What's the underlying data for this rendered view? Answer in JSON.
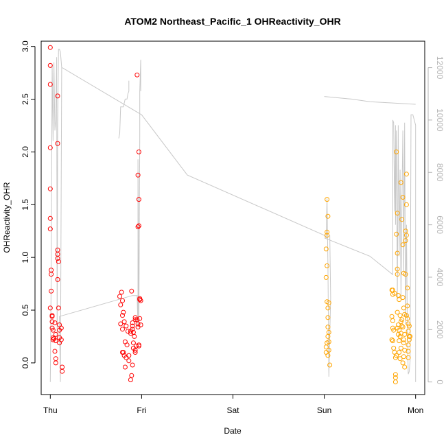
{
  "chart_data": {
    "type": "scatter",
    "title": "ATOM2 Northeast_Pacific_1 OHReactivity_OHR",
    "xlabel": "Date",
    "ylabel": "OHReactivity_OHR",
    "x_tick_labels": [
      "Thu",
      "Fri",
      "Sat",
      "Sun",
      "Mon"
    ],
    "x_tick_values": [
      0,
      1,
      2,
      3,
      4
    ],
    "xlim": [
      -0.1,
      4.1
    ],
    "ylim": [
      -0.3,
      3.05
    ],
    "y_ticks": [
      0.0,
      0.5,
      1.0,
      1.5,
      2.0,
      2.5,
      3.0
    ],
    "y_tick_labels": [
      "0.0",
      "0.5",
      "1.0",
      "1.5",
      "2.0",
      "2.5",
      "3.0"
    ],
    "y2_ticks": [
      0,
      2000,
      4000,
      6000,
      8000,
      10000,
      12000
    ],
    "y2_tick_labels": [
      "0",
      "2000",
      "4000",
      "6000",
      "8000",
      "10000",
      "12000"
    ],
    "y2lim": [
      -480,
      13010
    ],
    "grid": false,
    "colors": {
      "red_series": "#ff0000",
      "orange_series": "#ffa500",
      "altitude_line": "#c8c8c8"
    },
    "series": [
      {
        "marker": "open-circle",
        "color": "#ff0000",
        "points": [
          [
            0.0,
            2.99
          ],
          [
            0.0,
            2.82
          ],
          [
            0.0,
            2.64
          ],
          [
            0.0,
            2.04
          ],
          [
            0.0,
            1.65
          ],
          [
            0.0,
            1.37
          ],
          [
            0.0,
            1.27
          ],
          [
            0.01,
            0.88
          ],
          [
            0.01,
            0.84
          ],
          [
            0.01,
            0.68
          ],
          [
            0.0,
            0.52
          ],
          [
            0.02,
            0.45
          ],
          [
            0.02,
            0.44
          ],
          [
            0.02,
            0.39
          ],
          [
            0.02,
            0.33
          ],
          [
            0.03,
            0.31
          ],
          [
            0.03,
            0.24
          ],
          [
            0.03,
            0.22
          ],
          [
            0.05,
            0.38
          ],
          [
            0.06,
            0.27
          ],
          [
            0.04,
            0.23
          ],
          [
            0.06,
            0.21
          ],
          [
            0.05,
            0.11
          ],
          [
            0.06,
            0.04
          ],
          [
            0.06,
            0.0
          ],
          [
            0.08,
            2.53
          ],
          [
            0.08,
            2.08
          ],
          [
            0.08,
            1.07
          ],
          [
            0.08,
            1.03
          ],
          [
            0.08,
            0.99
          ],
          [
            0.09,
            0.96
          ],
          [
            0.08,
            0.79
          ],
          [
            0.09,
            0.52
          ],
          [
            0.1,
            0.36
          ],
          [
            0.1,
            0.31
          ],
          [
            0.1,
            0.24
          ],
          [
            0.1,
            0.19
          ],
          [
            0.12,
            0.33
          ],
          [
            0.12,
            0.22
          ],
          [
            0.13,
            -0.04
          ],
          [
            0.13,
            -0.08
          ],
          [
            0.76,
            0.63
          ],
          [
            0.78,
            0.67
          ],
          [
            0.79,
            0.59
          ],
          [
            0.77,
            0.55
          ],
          [
            0.79,
            0.45
          ],
          [
            0.8,
            0.48
          ],
          [
            0.77,
            0.37
          ],
          [
            0.81,
            0.39
          ],
          [
            0.79,
            0.32
          ],
          [
            0.83,
            0.35
          ],
          [
            0.85,
            0.3
          ],
          [
            0.82,
            0.2
          ],
          [
            0.84,
            0.17
          ],
          [
            0.79,
            0.1
          ],
          [
            0.8,
            0.1
          ],
          [
            0.81,
            0.07
          ],
          [
            0.83,
            0.05
          ],
          [
            0.82,
            -0.04
          ],
          [
            0.86,
            0.07
          ],
          [
            0.86,
            0.02
          ],
          [
            0.88,
            0.3
          ],
          [
            0.88,
            0.28
          ],
          [
            0.9,
            0.38
          ],
          [
            0.9,
            0.35
          ],
          [
            0.9,
            0.32
          ],
          [
            0.91,
            0.29
          ],
          [
            0.92,
            0.25
          ],
          [
            0.91,
            0.19
          ],
          [
            0.91,
            0.14
          ],
          [
            0.89,
            0.68
          ],
          [
            0.93,
            0.43
          ],
          [
            0.93,
            0.41
          ],
          [
            0.95,
            0.41
          ],
          [
            0.96,
            0.37
          ],
          [
            0.96,
            0.34
          ],
          [
            0.93,
            0.1
          ],
          [
            0.93,
            0.12
          ],
          [
            0.94,
            0.16
          ],
          [
            0.97,
            0.17
          ],
          [
            0.97,
            0.16
          ],
          [
            0.9,
            -0.02
          ],
          [
            0.89,
            -0.12
          ],
          [
            0.88,
            -0.16
          ],
          [
            0.95,
            2.73
          ],
          [
            0.97,
            2.0
          ],
          [
            0.96,
            1.78
          ],
          [
            0.97,
            1.55
          ],
          [
            0.96,
            1.29
          ],
          [
            0.97,
            1.3
          ],
          [
            0.98,
            0.61
          ],
          [
            0.98,
            0.6
          ],
          [
            0.99,
            0.59
          ],
          [
            0.98,
            0.42
          ],
          [
            0.99,
            0.36
          ]
        ]
      },
      {
        "marker": "open-circle",
        "color": "#ffa500",
        "points": [
          [
            3.03,
            1.55
          ],
          [
            3.04,
            1.39
          ],
          [
            3.03,
            1.24
          ],
          [
            3.03,
            1.21
          ],
          [
            3.02,
            1.08
          ],
          [
            3.03,
            0.92
          ],
          [
            3.02,
            0.81
          ],
          [
            3.03,
            0.58
          ],
          [
            3.05,
            0.57
          ],
          [
            3.04,
            0.52
          ],
          [
            3.04,
            0.43
          ],
          [
            3.04,
            0.34
          ],
          [
            3.05,
            0.29
          ],
          [
            3.04,
            0.25
          ],
          [
            3.05,
            0.2
          ],
          [
            3.03,
            0.19
          ],
          [
            3.02,
            0.15
          ],
          [
            3.05,
            0.12
          ],
          [
            3.02,
            0.1
          ],
          [
            3.04,
            0.07
          ],
          [
            3.06,
            -0.02
          ],
          [
            3.75,
            0.69
          ],
          [
            3.74,
            0.69
          ],
          [
            3.75,
            0.65
          ],
          [
            3.77,
            0.66
          ],
          [
            3.74,
            0.44
          ],
          [
            3.75,
            0.4
          ],
          [
            3.75,
            0.33
          ],
          [
            3.76,
            0.31
          ],
          [
            3.74,
            0.22
          ],
          [
            3.75,
            0.21
          ],
          [
            3.76,
            0.14
          ],
          [
            3.77,
            0.1
          ],
          [
            3.78,
            0.05
          ],
          [
            3.79,
            0.07
          ],
          [
            3.78,
            -0.11
          ],
          [
            3.78,
            -0.14
          ],
          [
            3.78,
            -0.18
          ],
          [
            3.79,
            2.0
          ],
          [
            3.8,
            1.42
          ],
          [
            3.79,
            1.22
          ],
          [
            3.8,
            1.04
          ],
          [
            3.8,
            0.89
          ],
          [
            3.8,
            0.84
          ],
          [
            3.81,
            0.64
          ],
          [
            3.82,
            0.6
          ],
          [
            3.8,
            0.48
          ],
          [
            3.83,
            0.45
          ],
          [
            3.81,
            0.36
          ],
          [
            3.82,
            0.31
          ],
          [
            3.83,
            0.25
          ],
          [
            3.82,
            0.21
          ],
          [
            3.84,
            0.14
          ],
          [
            3.82,
            0.1
          ],
          [
            3.83,
            0.04
          ],
          [
            3.84,
            1.71
          ],
          [
            3.86,
            1.57
          ],
          [
            3.85,
            1.36
          ],
          [
            3.86,
            1.12
          ],
          [
            3.87,
            0.85
          ],
          [
            3.86,
            0.62
          ],
          [
            3.87,
            0.52
          ],
          [
            3.85,
            0.41
          ],
          [
            3.86,
            0.34
          ],
          [
            3.88,
            0.27
          ],
          [
            3.87,
            0.22
          ],
          [
            3.87,
            0.19
          ],
          [
            3.88,
            0.12
          ],
          [
            3.87,
            0.06
          ],
          [
            3.86,
            0.0
          ],
          [
            3.9,
            1.79
          ],
          [
            3.9,
            1.5
          ],
          [
            3.89,
            1.25
          ],
          [
            3.9,
            1.21
          ],
          [
            3.89,
            1.16
          ],
          [
            3.89,
            0.84
          ],
          [
            3.91,
            0.71
          ],
          [
            3.91,
            0.54
          ],
          [
            3.91,
            0.42
          ],
          [
            3.92,
            0.37
          ],
          [
            3.93,
            0.35
          ],
          [
            3.93,
            0.25
          ],
          [
            3.94,
            0.25
          ],
          [
            3.92,
            0.17
          ],
          [
            3.92,
            0.11
          ],
          [
            3.88,
            -0.04
          ],
          [
            3.9,
            0.45
          ],
          [
            3.88,
            0.46
          ],
          [
            3.85,
            0.35
          ],
          [
            3.84,
            0.28
          ],
          [
            3.81,
            0.27
          ],
          [
            3.84,
            0.39
          ],
          [
            3.8,
            0.33
          ],
          [
            3.92,
            0.3
          ],
          [
            3.93,
            0.22
          ],
          [
            3.92,
            0.05
          ]
        ]
      }
    ],
    "secondary_line": {
      "axis": "right",
      "color": "#c8c8c8",
      "segments": [
        [
          [
            0.0,
            0
          ],
          [
            0.01,
            4100
          ],
          [
            0.02,
            12100
          ],
          [
            0.03,
            9200
          ],
          [
            0.04,
            12200
          ],
          [
            0.05,
            9600
          ],
          [
            0.06,
            10000
          ],
          [
            0.07,
            12400
          ],
          [
            0.075,
            1500
          ],
          [
            0.08,
            9600
          ],
          [
            0.09,
            12700
          ],
          [
            0.1,
            12700
          ],
          [
            0.11,
            12600
          ],
          [
            0.12,
            12200
          ],
          [
            0.125,
            12000
          ],
          [
            0.11,
            0
          ],
          [
            0.1,
            2500
          ],
          [
            0.9,
            3300
          ],
          [
            0.95,
            3300
          ],
          [
            0.96,
            2100
          ],
          [
            0.96,
            8500
          ],
          [
            0.97,
            2100
          ],
          [
            0.98,
            9400
          ],
          [
            0.98,
            11100
          ],
          [
            0.99,
            12300
          ],
          [
            0.99,
            11100
          ]
        ],
        [
          [
            0.75,
            9300
          ],
          [
            0.76,
            9500
          ],
          [
            0.77,
            10500
          ],
          [
            0.8,
            10500
          ],
          [
            0.82,
            10800
          ],
          [
            0.84,
            10800
          ],
          [
            0.85,
            11000
          ],
          [
            0.86,
            11100
          ],
          [
            0.86,
            11500
          ]
        ],
        [
          [
            0.13,
            12000
          ],
          [
            1.0,
            10200
          ],
          [
            1.5,
            7900
          ],
          [
            3.0,
            5600
          ],
          [
            3.02,
            5500
          ],
          [
            3.03,
            7000
          ],
          [
            3.04,
            4500
          ],
          [
            3.05,
            200
          ],
          [
            3.06,
            1800
          ],
          [
            3.07,
            3200
          ],
          [
            3.06,
            5600
          ]
        ],
        [
          [
            3.0,
            10900
          ],
          [
            3.3,
            10800
          ],
          [
            3.5,
            10700
          ],
          [
            4.0,
            10600
          ]
        ],
        [
          [
            3.0,
            5500
          ],
          [
            3.5,
            4800
          ],
          [
            3.75,
            4100
          ],
          [
            3.75,
            10000
          ],
          [
            3.76,
            9900
          ],
          [
            3.77,
            6500
          ],
          [
            3.78,
            9800
          ],
          [
            3.78,
            6000
          ],
          [
            3.79,
            9600
          ],
          [
            3.8,
            3200
          ],
          [
            3.81,
            9800
          ],
          [
            3.82,
            4800
          ],
          [
            3.83,
            8100
          ],
          [
            3.84,
            3200
          ],
          [
            3.85,
            6800
          ],
          [
            3.86,
            9600
          ],
          [
            3.87,
            4200
          ],
          [
            3.88,
            9900
          ],
          [
            3.89,
            2200
          ],
          [
            3.9,
            6000
          ],
          [
            3.91,
            1900
          ],
          [
            3.92,
            300
          ],
          [
            3.93,
            400
          ],
          [
            3.94,
            800
          ],
          [
            3.95,
            10200
          ],
          [
            3.97,
            10200
          ],
          [
            4.0,
            9800
          ],
          [
            4.0,
            0
          ]
        ]
      ]
    }
  }
}
